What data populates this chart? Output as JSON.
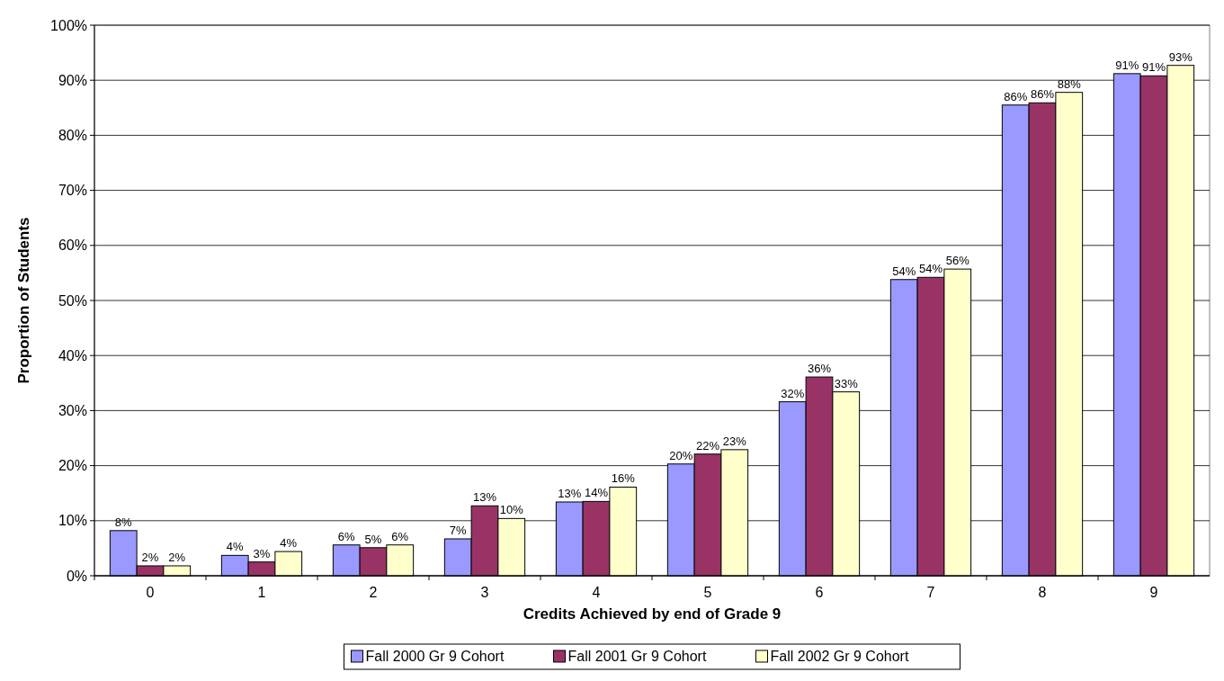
{
  "chart_data": {
    "type": "bar",
    "xlabel": "Credits Achieved by end of Grade 9",
    "ylabel": "Proportion of Students",
    "categories": [
      "0",
      "1",
      "2",
      "3",
      "4",
      "5",
      "6",
      "7",
      "8",
      "9"
    ],
    "series": [
      {
        "name": "Fall 2000 Gr 9 Cohort",
        "color": "#9999ff",
        "values": [
          8.2,
          3.7,
          5.6,
          6.7,
          13.4,
          20.3,
          31.6,
          53.8,
          85.5,
          91.2
        ],
        "value_labels": [
          "8%",
          "4%",
          "6%",
          "7%",
          "13%",
          "20%",
          "32%",
          "54%",
          "86%",
          "91%"
        ]
      },
      {
        "name": "Fall 2001 Gr 9 Cohort",
        "color": "#993366",
        "values": [
          1.8,
          2.5,
          5.1,
          12.7,
          13.5,
          22.1,
          36.1,
          54.2,
          85.9,
          90.8
        ],
        "value_labels": [
          "2%",
          "3%",
          "5%",
          "13%",
          "14%",
          "22%",
          "36%",
          "54%",
          "86%",
          "91%"
        ]
      },
      {
        "name": "Fall 2002 Gr 9 Cohort",
        "color": "#ffffcc",
        "values": [
          1.8,
          4.4,
          5.6,
          10.4,
          16.1,
          22.9,
          33.4,
          55.7,
          87.8,
          92.7
        ],
        "value_labels": [
          "2%",
          "4%",
          "6%",
          "10%",
          "16%",
          "23%",
          "33%",
          "56%",
          "88%",
          "93%"
        ]
      }
    ],
    "ylim": [
      0,
      100
    ],
    "yticks": [
      {
        "value": 0,
        "label": "0%"
      },
      {
        "value": 10,
        "label": "10%"
      },
      {
        "value": 20,
        "label": "20%"
      },
      {
        "value": 30,
        "label": "30%"
      },
      {
        "value": 40,
        "label": "40%"
      },
      {
        "value": 50,
        "label": "50%"
      },
      {
        "value": 60,
        "label": "60%"
      },
      {
        "value": 70,
        "label": "70%"
      },
      {
        "value": 80,
        "label": "80%"
      },
      {
        "value": 90,
        "label": "90%"
      },
      {
        "value": 100,
        "label": "100%"
      }
    ],
    "grid": "y",
    "legend": "bottom"
  }
}
